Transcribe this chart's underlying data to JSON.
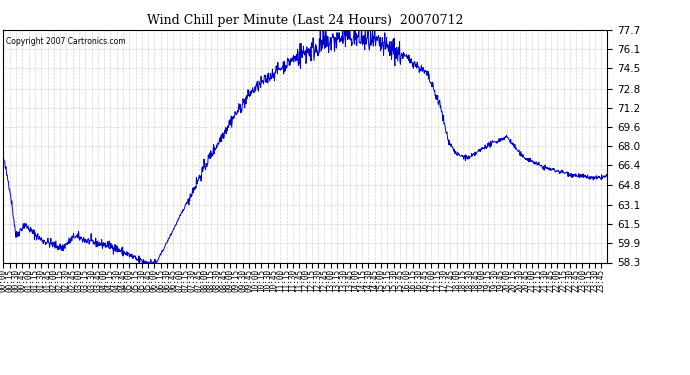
{
  "title": "Wind Chill per Minute (Last 24 Hours)  20070712",
  "copyright": "Copyright 2007 Cartronics.com",
  "line_color": "#0000cc",
  "background_color": "#ffffff",
  "grid_color": "#c8c8c8",
  "yticks": [
    58.3,
    59.9,
    61.5,
    63.1,
    64.8,
    66.4,
    68.0,
    69.6,
    71.2,
    72.8,
    74.5,
    76.1,
    77.7
  ],
  "ymin": 58.3,
  "ymax": 77.7,
  "figwidth": 6.9,
  "figheight": 3.75,
  "dpi": 100
}
